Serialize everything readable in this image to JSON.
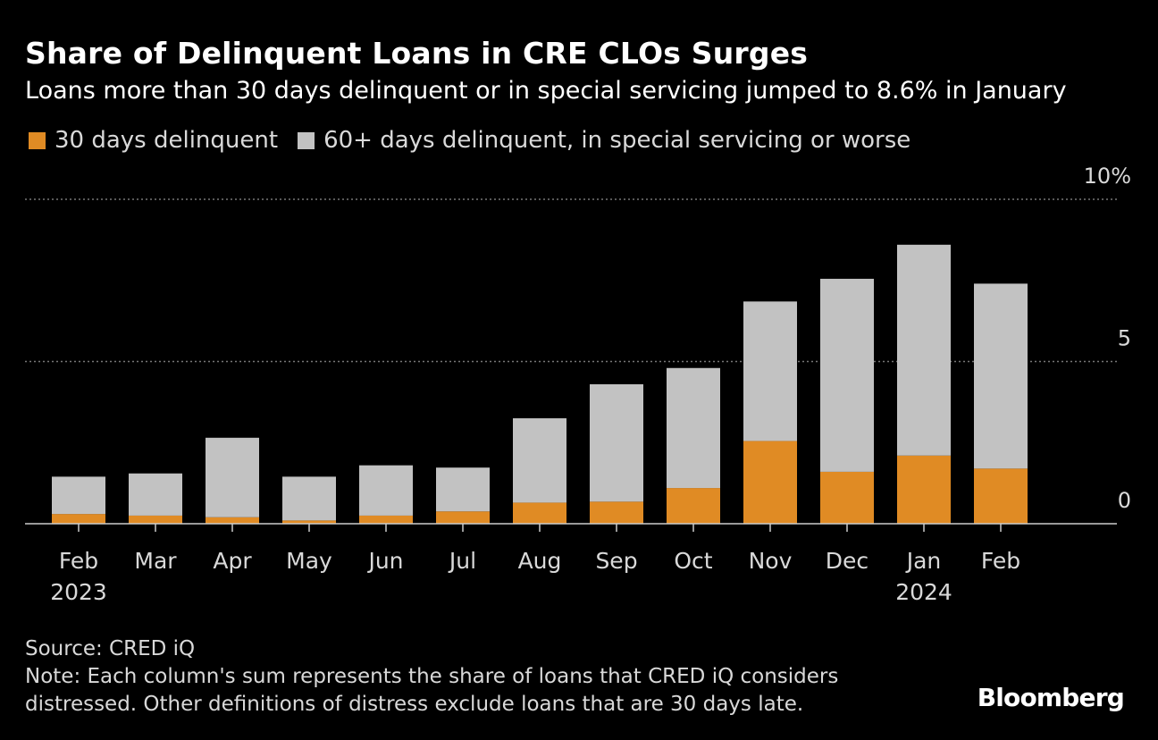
{
  "title": "Share of Delinquent Loans in CRE CLOs Surges",
  "subtitle": "Loans more than 30 days delinquent or in special servicing jumped to 8.6% in January",
  "colors": {
    "background": "#000000",
    "series_30": "#e08b24",
    "series_60": "#c2c2c2",
    "gridline": "#777777",
    "text": "#d9d9d9"
  },
  "chart_data": {
    "type": "bar",
    "stacked": true,
    "categories": [
      "Feb",
      "Mar",
      "Apr",
      "May",
      "Jun",
      "Jul",
      "Aug",
      "Sep",
      "Oct",
      "Nov",
      "Dec",
      "Jan",
      "Feb"
    ],
    "year_labels": [
      "2023",
      "",
      "",
      "",
      "",
      "",
      "",
      "",
      "",
      "",
      "",
      "2024",
      ""
    ],
    "series": [
      {
        "name": "30 days delinquent",
        "color": "#e08b24",
        "values": [
          0.3,
          0.25,
          0.2,
          0.1,
          0.25,
          0.38,
          0.65,
          0.68,
          1.1,
          2.55,
          1.6,
          2.1,
          1.7
        ]
      },
      {
        "name": "60+ days delinquent, in special servicing or worse",
        "color": "#c2c2c2",
        "values": [
          1.15,
          1.3,
          2.45,
          1.35,
          1.55,
          1.35,
          2.6,
          3.62,
          3.7,
          4.3,
          5.95,
          6.5,
          5.7
        ]
      }
    ],
    "y_ticks": [
      0,
      5,
      10
    ],
    "y_tick_labels": [
      "0",
      "5",
      "10%"
    ],
    "ylim": [
      0,
      10
    ],
    "gridlines": true,
    "y_axis_position": "right",
    "legend_position": "top-left"
  },
  "footer": {
    "source": "Source: CRED iQ",
    "note_line1": "Note: Each column's sum represents the share of loans that CRED iQ considers",
    "note_line2": "distressed. Other definitions of distress exclude loans that are 30 days late."
  },
  "brand": "Bloomberg"
}
